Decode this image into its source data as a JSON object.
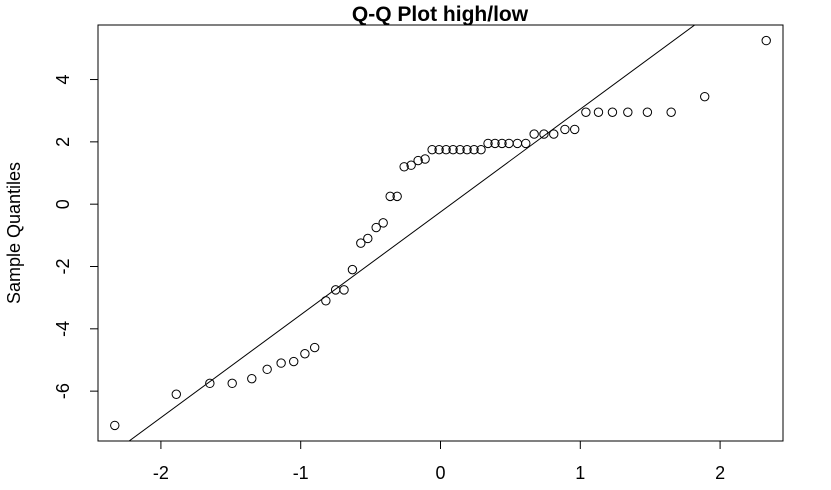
{
  "chart_data": {
    "type": "scatter",
    "title": "Q-Q Plot high/low",
    "xlabel": "",
    "ylabel": "Sample Quantiles",
    "xlim": [
      -2.45,
      2.45
    ],
    "ylim": [
      -7.6,
      5.75
    ],
    "x_ticks": [
      -2,
      -1,
      0,
      1,
      2
    ],
    "x_tick_labels": [
      "-2",
      "-1",
      "0",
      "1",
      "2"
    ],
    "y_ticks": [
      -6,
      -4,
      -2,
      0,
      2,
      4
    ],
    "y_tick_labels": [
      "-6",
      "-4",
      "-2",
      "0",
      "2",
      "4"
    ],
    "grid": false,
    "legend": "none",
    "series": [
      {
        "marker": "open-circle",
        "x": [
          -2.33,
          -1.89,
          -1.65,
          -1.49,
          -1.35,
          -1.24,
          -1.14,
          -1.05,
          -0.97,
          -0.9,
          -0.82,
          -0.75,
          -0.69,
          -0.63,
          -0.57,
          -0.52,
          -0.46,
          -0.41,
          -0.36,
          -0.31,
          -0.26,
          -0.21,
          -0.16,
          -0.11,
          -0.06,
          -0.01,
          0.04,
          0.09,
          0.14,
          0.19,
          0.24,
          0.29,
          0.34,
          0.39,
          0.44,
          0.49,
          0.55,
          0.61,
          0.67,
          0.74,
          0.81,
          0.89,
          0.96,
          1.04,
          1.13,
          1.23,
          1.34,
          1.48,
          1.65,
          1.89,
          2.33
        ],
        "y": [
          -7.1,
          -6.1,
          -5.75,
          -5.75,
          -5.6,
          -5.3,
          -5.1,
          -5.05,
          -4.8,
          -4.6,
          -3.1,
          -2.75,
          -2.75,
          -2.1,
          -1.25,
          -1.1,
          -0.75,
          -0.6,
          0.25,
          0.25,
          1.2,
          1.25,
          1.4,
          1.45,
          1.75,
          1.75,
          1.75,
          1.75,
          1.75,
          1.75,
          1.75,
          1.75,
          1.95,
          1.95,
          1.95,
          1.95,
          1.95,
          1.95,
          2.25,
          2.25,
          2.25,
          2.4,
          2.4,
          2.95,
          2.95,
          2.95,
          2.95,
          2.95,
          2.95,
          3.45,
          5.25
        ]
      }
    ],
    "reference_line": {
      "intercept": -0.25,
      "slope": 3.3
    },
    "colors": {
      "points": "#000000",
      "line": "#000000",
      "box": "#000000",
      "background": "#ffffff"
    }
  }
}
